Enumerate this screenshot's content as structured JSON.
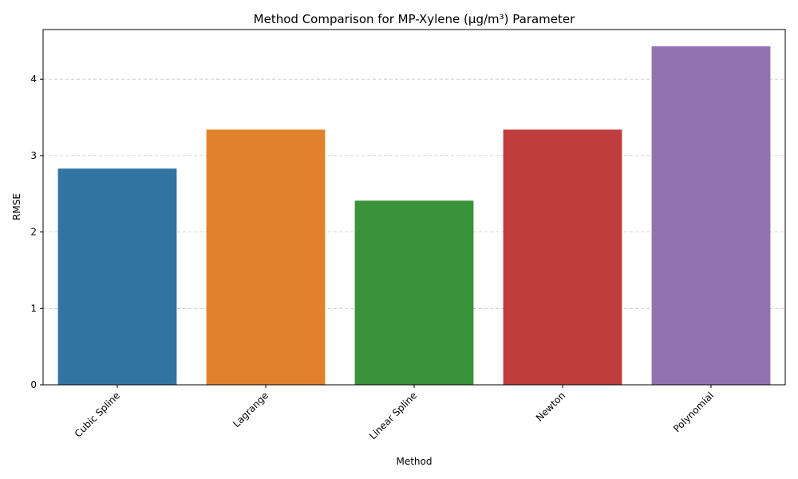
{
  "chart_data": {
    "type": "bar",
    "title": "Method Comparison for MP-Xylene (µg/m³) Parameter",
    "xlabel": "Method",
    "ylabel": "RMSE",
    "categories": [
      "Cubic Spline",
      "Lagrange",
      "Linear Spline",
      "Newton",
      "Polynomial"
    ],
    "values": [
      2.83,
      3.34,
      2.41,
      3.34,
      4.43
    ],
    "colors": [
      "#3274a1",
      "#e1812c",
      "#3a923a",
      "#c03d3e",
      "#9372b2"
    ],
    "ylim": [
      0,
      4.65
    ],
    "yticks": [
      0,
      1,
      2,
      3,
      4
    ],
    "grid": "y-dashed",
    "legend": "none"
  }
}
